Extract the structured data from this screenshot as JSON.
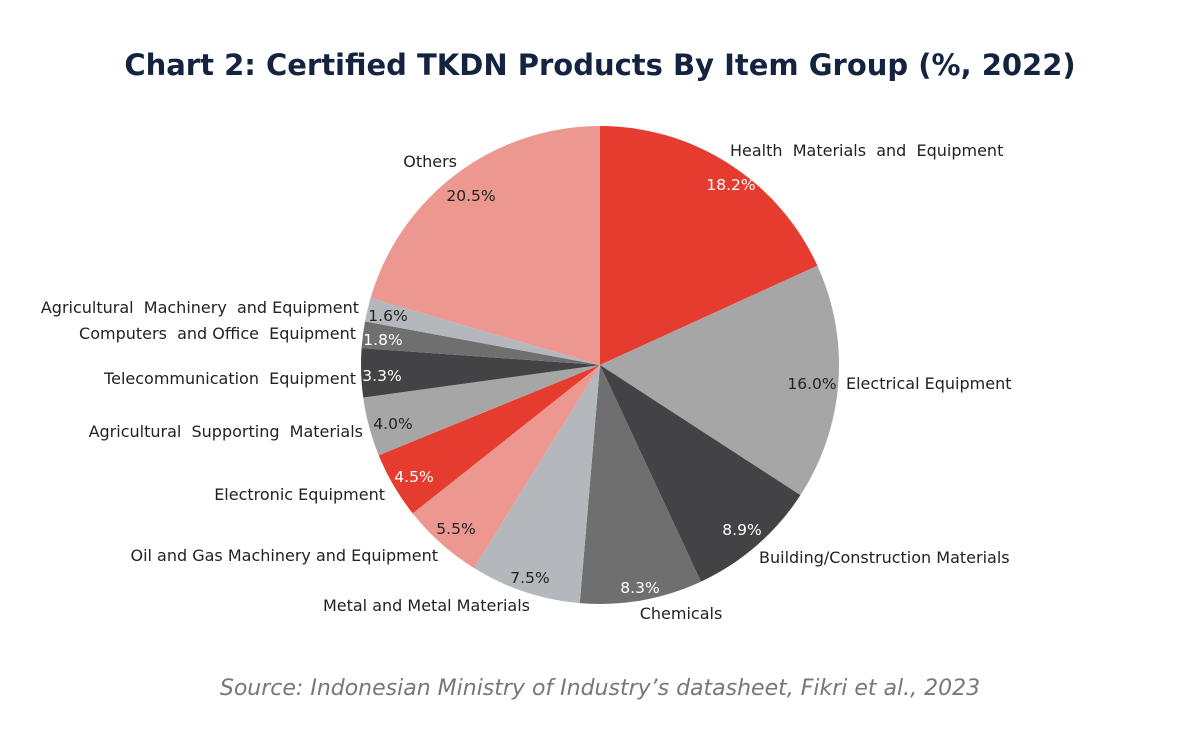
{
  "chart_data": {
    "type": "pie",
    "title": "Chart 2: Certified TKDN Products By Item Group (%, 2022)",
    "source": "Source: Indonesian Ministry of Industry’s datasheet, Fikri et al., 2023",
    "start_angle": "top, clockwise",
    "slices": [
      {
        "label": "Health  Materials  and  Equipment",
        "value": 18.2,
        "value_label": "18.2%",
        "color": "#e63c2f"
      },
      {
        "label": "Electrical Equipment",
        "value": 16.0,
        "value_label": "16.0%",
        "color": "#a6a6a6"
      },
      {
        "label": "Building/Construction Materials",
        "value": 8.9,
        "value_label": "8.9%",
        "color": "#434345"
      },
      {
        "label": "Chemicals",
        "value": 8.3,
        "value_label": "8.3%",
        "color": "#6f6f70"
      },
      {
        "label": "Metal and Metal Materials",
        "value": 7.5,
        "value_label": "7.5%",
        "color": "#b4b7bb"
      },
      {
        "label": "Oil and Gas Machinery and Equipment",
        "value": 5.5,
        "value_label": "5.5%",
        "color": "#ec9890"
      },
      {
        "label": "Electronic Equipment",
        "value": 4.5,
        "value_label": "4.5%",
        "color": "#e63c2f"
      },
      {
        "label": "Agricultural  Supporting  Materials",
        "value": 4.0,
        "value_label": "4.0%",
        "color": "#a6a6a6"
      },
      {
        "label": "Telecommunication  Equipment",
        "value": 3.3,
        "value_label": "3.3%",
        "color": "#434345"
      },
      {
        "label": "Computers  and Office  Equipment",
        "value": 1.8,
        "value_label": "1.8%",
        "color": "#6f6f70"
      },
      {
        "label": "Agricultural  Machinery  and Equipment",
        "value": 1.6,
        "value_label": "1.6%",
        "color": "#b4b7bb"
      },
      {
        "label": "Others",
        "value": 20.5,
        "value_label": "20.5%",
        "color": "#ec9890"
      }
    ]
  }
}
